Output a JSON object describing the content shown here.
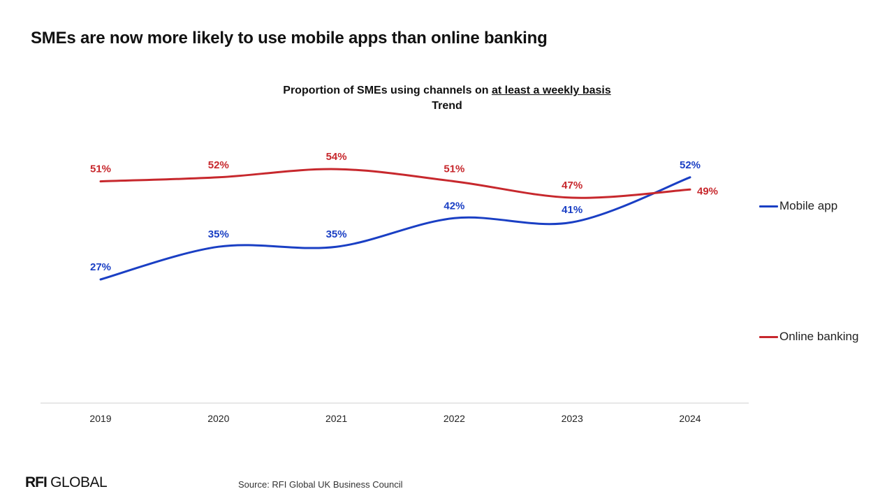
{
  "headline": "SMEs are now more likely to use mobile apps than online banking",
  "logo": {
    "strong": "RFI",
    "light": "GLOBAL"
  },
  "source": "Source: RFI Global UK Business Council",
  "chart_data": {
    "type": "line",
    "title_prefix": "Proportion of SMEs using channels on ",
    "title_emphasis": "at least a weekly basis",
    "subtitle": "Trend",
    "x": [
      "2019",
      "2020",
      "2021",
      "2022",
      "2023",
      "2024"
    ],
    "series": [
      {
        "name": "Mobile app",
        "color": "#1a3fc4",
        "values": [
          27,
          35,
          35,
          42,
          41,
          52
        ],
        "labels": [
          "27%",
          "35%",
          "35%",
          "42%",
          "41%",
          "52%"
        ]
      },
      {
        "name": "Online banking",
        "color": "#c7282d",
        "values": [
          51,
          52,
          54,
          51,
          47,
          49
        ],
        "labels": [
          "51%",
          "52%",
          "54%",
          "51%",
          "47%",
          "49%"
        ]
      }
    ],
    "unit": "%",
    "grid": false,
    "y_axis_visible": false,
    "legend_position": "right",
    "axis_line_color": "#cfcfcf"
  }
}
